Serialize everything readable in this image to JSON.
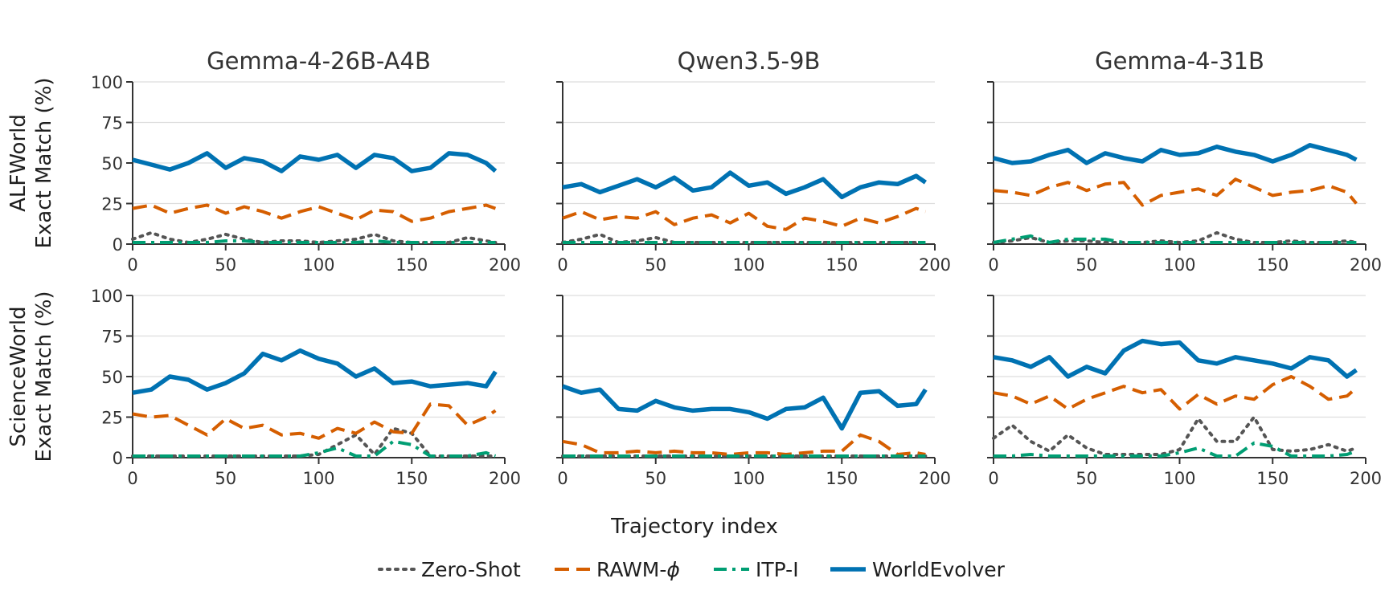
{
  "figure": {
    "xlabel": "Trajectory index",
    "xlim": [
      0,
      200
    ],
    "ylim": [
      0,
      100
    ],
    "xticks": [
      "0",
      "50",
      "100",
      "150",
      "200"
    ],
    "yticks": [
      "0",
      "25",
      "50",
      "75",
      "100"
    ],
    "grid": "horizontal",
    "legend_position": "bottom-center"
  },
  "columns": [
    "Gemma-4-26B-A4B",
    "Qwen3.5-9B",
    "Gemma-4-31B"
  ],
  "rows": [
    {
      "ylabel_line1": "ALFWorld",
      "ylabel_line2": "Exact Match (%)"
    },
    {
      "ylabel_line1": "ScienceWorld",
      "ylabel_line2": "Exact Match (%)"
    }
  ],
  "legend": [
    {
      "label": "Zero-Shot",
      "color": "#555555",
      "style": "dotted"
    },
    {
      "label": "RAWM-",
      "label_symbol": "ϕ",
      "color": "#d55e00",
      "style": "dashed"
    },
    {
      "label": "ITP-I",
      "color": "#009e73",
      "style": "dashdot"
    },
    {
      "label": "WorldEvolver",
      "color": "#0072b2",
      "style": "solid"
    }
  ],
  "chart_data": [
    {
      "type": "line",
      "panel": "ALFWorld / Gemma-4-26B-A4B",
      "x": [
        0,
        10,
        20,
        30,
        40,
        50,
        60,
        70,
        80,
        90,
        100,
        110,
        120,
        130,
        140,
        150,
        160,
        170,
        180,
        190,
        195
      ],
      "series": [
        {
          "name": "Zero-Shot",
          "values": [
            3,
            7,
            3,
            1,
            3,
            6,
            3,
            1,
            2,
            2,
            1,
            2,
            3,
            6,
            2,
            1,
            1,
            1,
            4,
            2,
            1
          ]
        },
        {
          "name": "RAWM-ϕ",
          "values": [
            22,
            24,
            19,
            22,
            24,
            19,
            23,
            20,
            16,
            20,
            23,
            19,
            15,
            21,
            20,
            14,
            16,
            20,
            22,
            24,
            22
          ]
        },
        {
          "name": "ITP-I",
          "values": [
            1,
            1,
            1,
            1,
            1,
            2,
            2,
            1,
            1,
            1,
            1,
            1,
            1,
            2,
            1,
            1,
            1,
            1,
            1,
            1,
            1
          ]
        },
        {
          "name": "WorldEvolver",
          "values": [
            52,
            49,
            46,
            50,
            56,
            47,
            53,
            51,
            45,
            54,
            52,
            55,
            47,
            55,
            53,
            45,
            47,
            56,
            55,
            50,
            45
          ]
        }
      ]
    },
    {
      "type": "line",
      "panel": "ALFWorld / Qwen3.5-9B",
      "x": [
        0,
        10,
        20,
        30,
        40,
        50,
        60,
        70,
        80,
        90,
        100,
        110,
        120,
        130,
        140,
        150,
        160,
        170,
        180,
        190,
        195
      ],
      "series": [
        {
          "name": "Zero-Shot",
          "values": [
            1,
            3,
            6,
            1,
            2,
            4,
            1,
            1,
            1,
            1,
            1,
            1,
            1,
            1,
            1,
            1,
            1,
            1,
            1,
            1,
            1
          ]
        },
        {
          "name": "RAWM-ϕ",
          "values": [
            16,
            20,
            15,
            17,
            16,
            20,
            12,
            16,
            18,
            13,
            19,
            11,
            9,
            16,
            14,
            11,
            16,
            13,
            17,
            22,
            20
          ]
        },
        {
          "name": "ITP-I",
          "values": [
            1,
            1,
            1,
            1,
            1,
            1,
            1,
            1,
            1,
            1,
            1,
            1,
            1,
            1,
            1,
            1,
            1,
            1,
            1,
            1,
            1
          ]
        },
        {
          "name": "WorldEvolver",
          "values": [
            35,
            37,
            32,
            36,
            40,
            35,
            41,
            33,
            35,
            44,
            36,
            38,
            31,
            35,
            40,
            29,
            35,
            38,
            37,
            42,
            38
          ]
        }
      ]
    },
    {
      "type": "line",
      "panel": "ALFWorld / Gemma-4-31B",
      "x": [
        0,
        10,
        20,
        30,
        40,
        50,
        60,
        70,
        80,
        90,
        100,
        110,
        120,
        130,
        140,
        150,
        160,
        170,
        180,
        190,
        195
      ],
      "series": [
        {
          "name": "Zero-Shot",
          "values": [
            1,
            2,
            4,
            1,
            2,
            2,
            1,
            1,
            1,
            2,
            1,
            2,
            7,
            3,
            1,
            1,
            2,
            1,
            1,
            2,
            1
          ]
        },
        {
          "name": "RAWM-ϕ",
          "values": [
            33,
            32,
            30,
            35,
            38,
            33,
            37,
            38,
            24,
            30,
            32,
            34,
            30,
            40,
            35,
            30,
            32,
            33,
            36,
            32,
            25
          ]
        },
        {
          "name": "ITP-I",
          "values": [
            1,
            3,
            5,
            1,
            3,
            3,
            3,
            1,
            1,
            1,
            1,
            1,
            1,
            1,
            1,
            1,
            1,
            1,
            1,
            1,
            1
          ]
        },
        {
          "name": "WorldEvolver",
          "values": [
            53,
            50,
            51,
            55,
            58,
            50,
            56,
            53,
            51,
            58,
            55,
            56,
            60,
            57,
            55,
            51,
            55,
            61,
            58,
            55,
            52
          ]
        }
      ]
    },
    {
      "type": "line",
      "panel": "ScienceWorld / Gemma-4-26B-A4B",
      "x": [
        0,
        10,
        20,
        30,
        40,
        50,
        60,
        70,
        80,
        90,
        100,
        110,
        120,
        130,
        140,
        150,
        160,
        170,
        180,
        190,
        195
      ],
      "series": [
        {
          "name": "Zero-Shot",
          "values": [
            1,
            1,
            1,
            1,
            1,
            1,
            1,
            1,
            1,
            1,
            2,
            8,
            14,
            2,
            18,
            15,
            1,
            1,
            1,
            1,
            1
          ]
        },
        {
          "name": "RAWM-ϕ",
          "values": [
            27,
            25,
            26,
            20,
            14,
            24,
            18,
            20,
            14,
            15,
            12,
            18,
            15,
            22,
            16,
            15,
            33,
            32,
            20,
            25,
            29
          ]
        },
        {
          "name": "ITP-I",
          "values": [
            1,
            1,
            1,
            1,
            1,
            1,
            1,
            1,
            1,
            1,
            3,
            6,
            1,
            1,
            10,
            8,
            1,
            1,
            1,
            3,
            1
          ]
        },
        {
          "name": "WorldEvolver",
          "values": [
            40,
            42,
            50,
            48,
            42,
            46,
            52,
            64,
            60,
            66,
            61,
            58,
            50,
            55,
            46,
            47,
            44,
            45,
            46,
            44,
            53
          ]
        }
      ]
    },
    {
      "type": "line",
      "panel": "ScienceWorld / Qwen3.5-9B",
      "x": [
        0,
        10,
        20,
        30,
        40,
        50,
        60,
        70,
        80,
        90,
        100,
        110,
        120,
        130,
        140,
        150,
        160,
        170,
        180,
        190,
        195
      ],
      "series": [
        {
          "name": "Zero-Shot",
          "values": [
            1,
            1,
            1,
            1,
            1,
            1,
            1,
            1,
            1,
            1,
            1,
            1,
            1,
            1,
            1,
            1,
            1,
            1,
            1,
            1,
            1
          ]
        },
        {
          "name": "RAWM-ϕ",
          "values": [
            10,
            8,
            3,
            3,
            4,
            3,
            4,
            3,
            3,
            2,
            3,
            3,
            2,
            3,
            4,
            4,
            14,
            10,
            2,
            3,
            2
          ]
        },
        {
          "name": "ITP-I",
          "values": [
            1,
            1,
            1,
            1,
            1,
            1,
            1,
            1,
            1,
            1,
            1,
            1,
            1,
            1,
            1,
            1,
            1,
            1,
            1,
            1,
            1
          ]
        },
        {
          "name": "WorldEvolver",
          "values": [
            44,
            40,
            42,
            30,
            29,
            35,
            31,
            29,
            30,
            30,
            28,
            24,
            30,
            31,
            37,
            18,
            40,
            41,
            32,
            33,
            42
          ]
        }
      ]
    },
    {
      "type": "line",
      "panel": "ScienceWorld / Gemma-4-31B",
      "x": [
        0,
        10,
        20,
        30,
        40,
        50,
        60,
        70,
        80,
        90,
        100,
        110,
        120,
        130,
        140,
        150,
        160,
        170,
        180,
        190,
        195
      ],
      "series": [
        {
          "name": "Zero-Shot",
          "values": [
            12,
            20,
            10,
            4,
            14,
            6,
            2,
            2,
            2,
            2,
            5,
            24,
            10,
            10,
            25,
            5,
            4,
            5,
            8,
            4,
            6
          ]
        },
        {
          "name": "RAWM-ϕ",
          "values": [
            40,
            38,
            33,
            38,
            30,
            36,
            40,
            44,
            40,
            42,
            30,
            39,
            33,
            38,
            36,
            45,
            50,
            44,
            36,
            38,
            43
          ]
        },
        {
          "name": "ITP-I",
          "values": [
            1,
            1,
            2,
            1,
            1,
            1,
            1,
            1,
            1,
            1,
            3,
            6,
            1,
            1,
            9,
            7,
            1,
            1,
            1,
            2,
            4
          ]
        },
        {
          "name": "WorldEvolver",
          "values": [
            62,
            60,
            56,
            62,
            50,
            56,
            52,
            66,
            72,
            70,
            71,
            60,
            58,
            62,
            60,
            58,
            55,
            62,
            60,
            50,
            54
          ]
        }
      ]
    }
  ]
}
